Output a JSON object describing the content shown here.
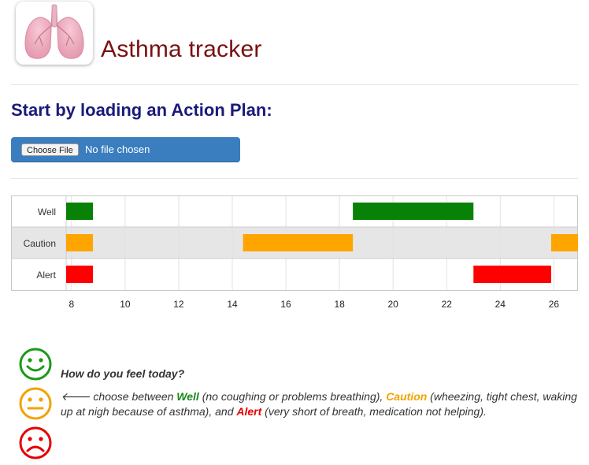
{
  "header": {
    "title": "Asthma tracker",
    "logo_icon": "lungs-icon"
  },
  "action_plan": {
    "heading": "Start by loading an Action Plan:",
    "choose_button": "Choose File",
    "file_status": "No file chosen"
  },
  "chart_data": {
    "type": "timeline",
    "rows": [
      "Well",
      "Caution",
      "Alert"
    ],
    "x_ticks": [
      "8",
      "10",
      "12",
      "14",
      "16",
      "18",
      "20",
      "22",
      "24",
      "26"
    ],
    "xlim": [
      7.8,
      26.9
    ],
    "colors": {
      "Well": "#078207",
      "Caution": "#ffa500",
      "Alert": "#ff0000"
    },
    "bars": [
      {
        "row": "Well",
        "start": 7.8,
        "end": 8.8
      },
      {
        "row": "Caution",
        "start": 7.8,
        "end": 8.8
      },
      {
        "row": "Alert",
        "start": 7.8,
        "end": 8.8
      },
      {
        "row": "Caution",
        "start": 14.4,
        "end": 18.5
      },
      {
        "row": "Well",
        "start": 18.5,
        "end": 23.0
      },
      {
        "row": "Alert",
        "start": 23.0,
        "end": 25.9
      },
      {
        "row": "Caution",
        "start": 25.9,
        "end": 26.9
      }
    ]
  },
  "feeling": {
    "question": "How do you feel today?",
    "arrow": "🡐",
    "t1": " choose between ",
    "well": "Well",
    "t2": " (no coughing or problems breathing), ",
    "caution": "Caution",
    "t3": " (wheezing, tight chest, waking up at nigh because of asthma), and ",
    "alert": "Alert",
    "t4": " (very short of breath, medication not helping).",
    "faces": [
      {
        "name": "happy-face-icon",
        "color": "#1a9a1a"
      },
      {
        "name": "neutral-face-icon",
        "color": "#f2a300"
      },
      {
        "name": "sad-face-icon",
        "color": "#e60000"
      }
    ]
  }
}
